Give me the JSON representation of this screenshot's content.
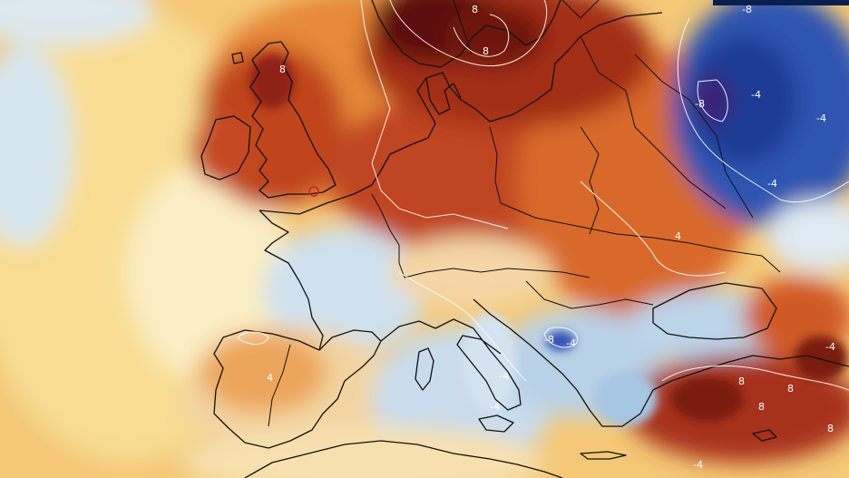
{
  "map": {
    "colors": {
      "ocean_warm": "#f7d98a",
      "very_hot": "#5a0d0a",
      "hot": "#b3361a",
      "warm": "#e07a2e",
      "mild_warm": "#f1b45c",
      "neutral": "#fbeec0",
      "cool": "#cfe2ee",
      "cold": "#5b8fc8",
      "very_cold": "#1d3f9a",
      "deep_cold": "#3a1a6e",
      "border": "#111111",
      "contour": "#ffffff",
      "marker": "#d0202a",
      "header_bar": "#0b1f4f"
    },
    "contour_labels": [
      "-8",
      "8",
      "8",
      "8",
      "-8",
      "-4",
      "-4",
      "-4",
      "4",
      "4",
      "-4",
      "-4",
      "-4",
      "8",
      "8",
      "8",
      "8",
      "-4",
      "-8",
      "-4"
    ]
  }
}
